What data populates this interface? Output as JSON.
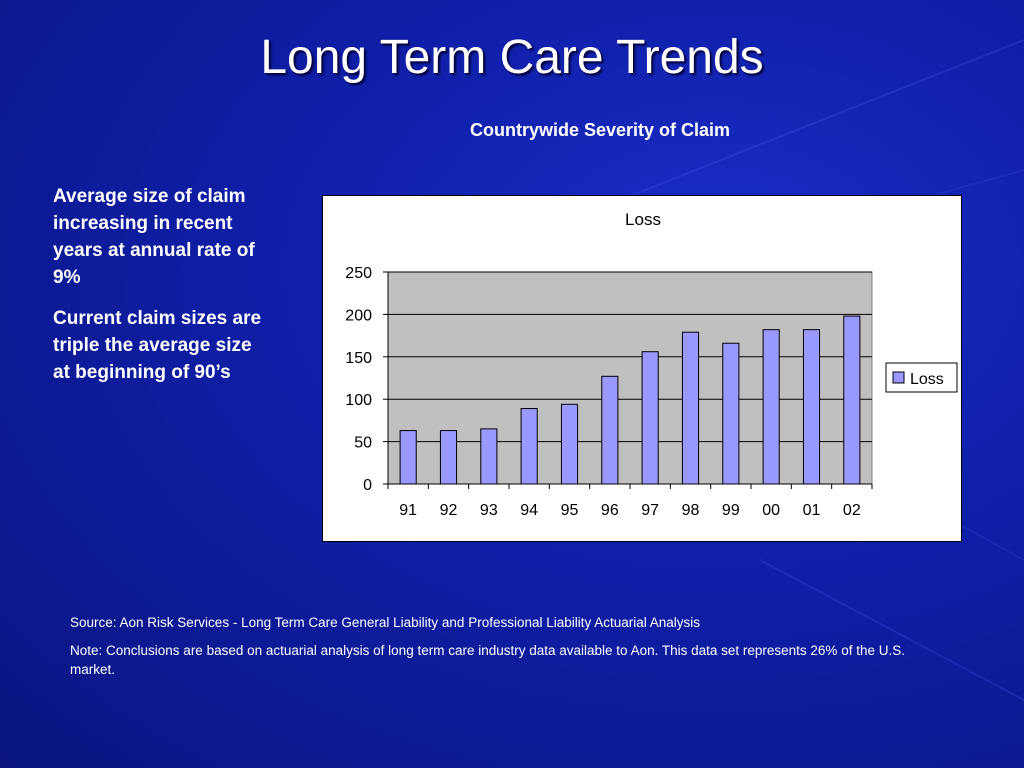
{
  "slide": {
    "title": "Long Term Care Trends",
    "chart_heading": "Countrywide Severity of Claim",
    "bullets": [
      "Average size of claim increasing in recent years at annual rate of 9%",
      "Current claim sizes are triple the average size at beginning of 90’s"
    ],
    "source": "Source: Aon Risk Services - Long Term Care General Liability and Professional Liability Actuarial Analysis",
    "note": "Note: Conclusions are based on actuarial analysis of long term care industry data available to Aon.  This data set represents 26% of the U.S. market."
  },
  "colors": {
    "background": "#0f1ea6",
    "bar_fill": "#9999ff",
    "plot_area": "#c0c0c0"
  },
  "chart_data": {
    "type": "bar",
    "title": "Loss",
    "categories": [
      "91",
      "92",
      "93",
      "94",
      "95",
      "96",
      "97",
      "98",
      "99",
      "00",
      "01",
      "02"
    ],
    "series": [
      {
        "name": "Loss",
        "values": [
          63,
          63,
          65,
          89,
          94,
          127,
          156,
          179,
          166,
          182,
          182,
          198
        ]
      }
    ],
    "ylim": [
      0,
      250
    ],
    "yticks": [
      0,
      50,
      100,
      150,
      200,
      250
    ],
    "grid": true,
    "legend": "right"
  }
}
